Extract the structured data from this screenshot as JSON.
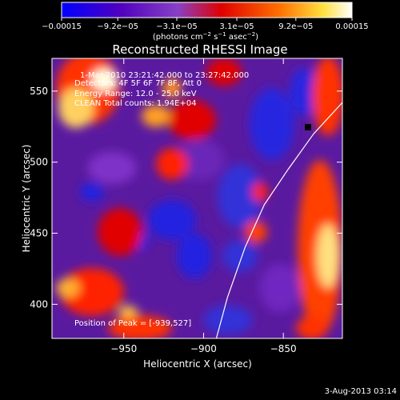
{
  "chart_data": {
    "type": "heatmap",
    "title": "Reconstructed RHESSI Image",
    "xlabel": "Heliocentric X (arcsec)",
    "ylabel": "Heliocentric Y (arcsec)",
    "xlim": [
      -995,
      -813
    ],
    "ylim": [
      376,
      573
    ],
    "x_ticks": [
      -950,
      -900,
      -850
    ],
    "x_tick_labels": [
      "−950",
      "−900",
      "−850"
    ],
    "y_ticks": [
      400,
      450,
      500,
      550
    ],
    "y_tick_labels": [
      "400",
      "450",
      "500",
      "550"
    ],
    "colorbar": {
      "min": -0.00015,
      "max": 0.00015,
      "tick_values": [
        -0.00015,
        -9.2e-05,
        -3.1e-05,
        3.1e-05,
        9.2e-05,
        0.00015
      ],
      "tick_labels": [
        "−0.00015",
        "−9.2e−05",
        "−3.1e−05",
        "3.1e−05",
        "9.2e−05",
        "0.00015"
      ],
      "unit_prefix": "(photons cm",
      "unit_exp1": "−2",
      "unit_mid": " s",
      "unit_exp2": "−1",
      "unit_mid2": " asec",
      "unit_exp3": "−2",
      "unit_suffix": ")",
      "colors": [
        "#0000ff",
        "#5a00c8",
        "#8a3cc8",
        "#ff0000",
        "#ff7800",
        "#ffffff"
      ]
    },
    "annotations": [
      "1-Mar-2010 23:21:42.000 to 23:27:42.000",
      "Detectors: 4F 5F 6F 7F 8F, Att 0",
      "Energy Range: 12.0 - 25.0 keV",
      "CLEAN  Total counts: 1.94E+04",
      "Position of Peak = [-939,527]"
    ],
    "limb_line": [
      [
        -892,
        376
      ],
      [
        -885,
        405
      ],
      [
        -874,
        440
      ],
      [
        -862,
        470
      ],
      [
        -847,
        495
      ],
      [
        -831,
        520
      ],
      [
        -813,
        542
      ]
    ],
    "grid": false,
    "date_stamp": "3-Aug-2013 03:14"
  }
}
